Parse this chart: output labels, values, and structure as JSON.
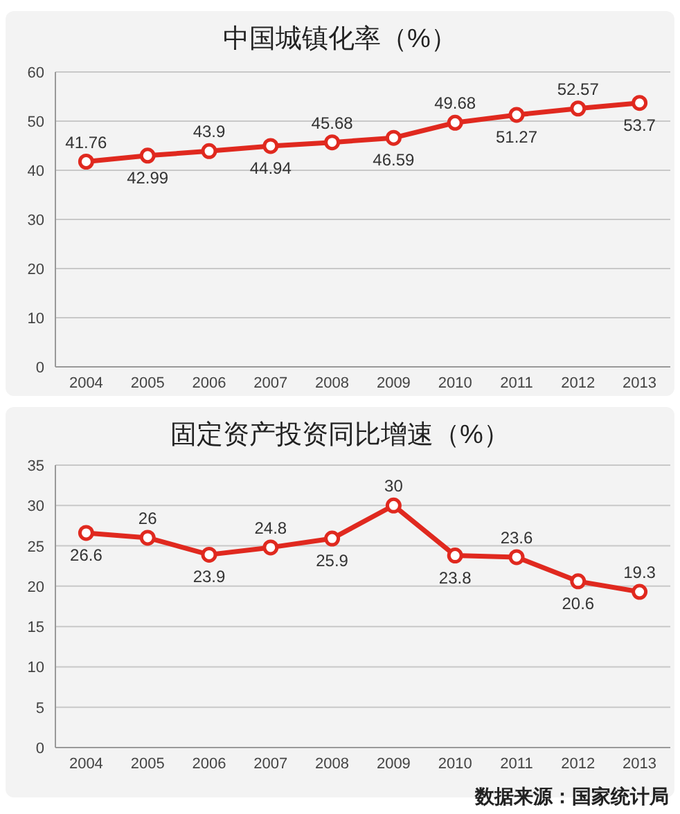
{
  "chart_data": [
    {
      "type": "line",
      "title": "中国城镇化率（%）",
      "categories": [
        "2004",
        "2005",
        "2006",
        "2007",
        "2008",
        "2009",
        "2010",
        "2011",
        "2012",
        "2013"
      ],
      "series": [
        {
          "color": "#e0291f",
          "values": [
            41.76,
            42.99,
            43.9,
            44.94,
            45.68,
            46.59,
            49.68,
            51.27,
            52.57,
            53.7
          ]
        }
      ],
      "ylim": [
        0,
        60
      ],
      "yticks": [
        0,
        10,
        20,
        30,
        40,
        50,
        60
      ],
      "grid": "y",
      "marker": "circle",
      "line_style": "solid",
      "data_labels": true
    },
    {
      "type": "line",
      "title": "固定资产投资同比增速（%）",
      "categories": [
        "2004",
        "2005",
        "2006",
        "2007",
        "2008",
        "2009",
        "2010",
        "2011",
        "2012",
        "2013"
      ],
      "series": [
        {
          "color": "#e0291f",
          "values": [
            26.6,
            26,
            23.9,
            24.8,
            25.9,
            30,
            23.8,
            23.6,
            20.6,
            19.3
          ]
        }
      ],
      "ylim": [
        0,
        35
      ],
      "yticks": [
        0,
        5,
        10,
        15,
        20,
        25,
        30,
        35
      ],
      "grid": "y",
      "marker": "circle",
      "line_style": "solid",
      "data_labels": true,
      "annotations": [
        "数据来源：国家统计局"
      ]
    }
  ]
}
